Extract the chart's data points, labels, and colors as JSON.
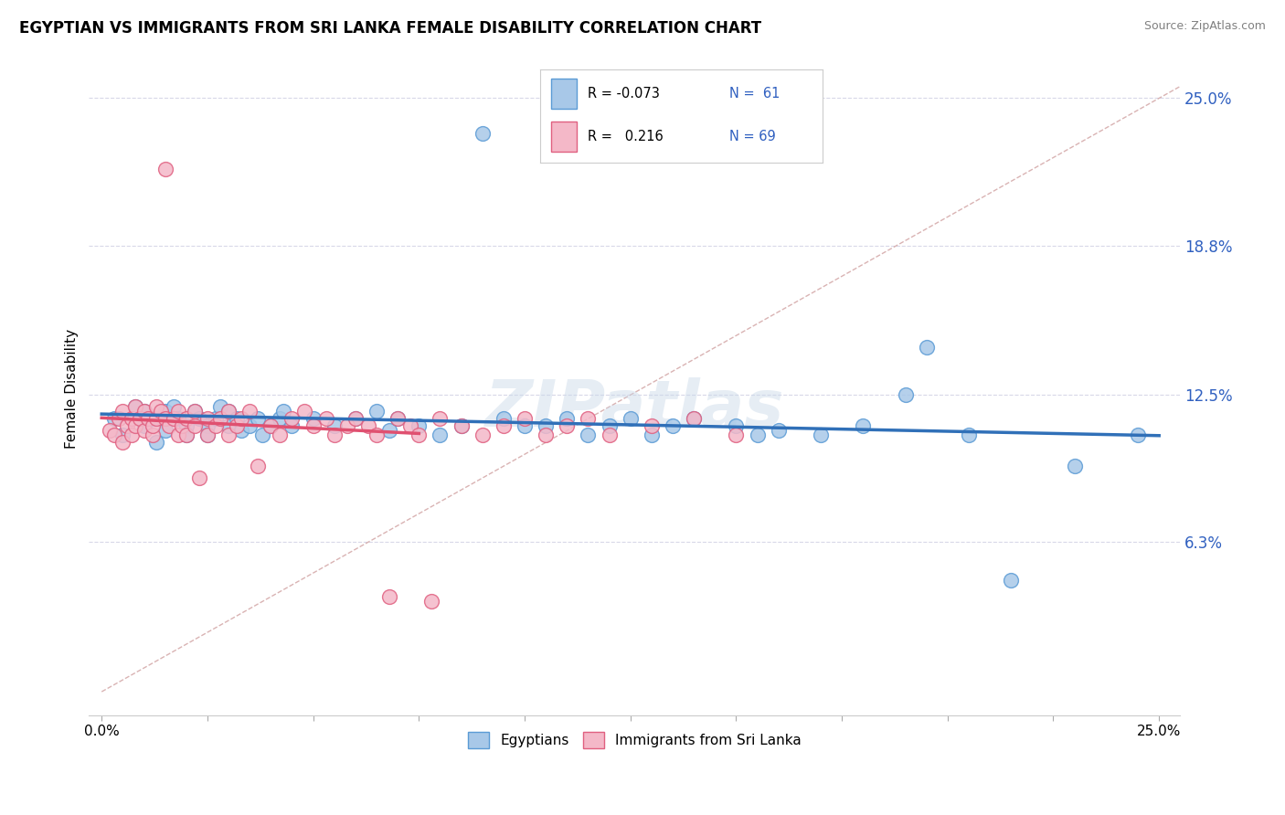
{
  "title": "EGYPTIAN VS IMMIGRANTS FROM SRI LANKA FEMALE DISABILITY CORRELATION CHART",
  "source": "Source: ZipAtlas.com",
  "ylabel": "Female Disability",
  "xlim": [
    -0.003,
    0.255
  ],
  "ylim": [
    -0.01,
    0.265
  ],
  "yticks": [
    0.063,
    0.125,
    0.188,
    0.25
  ],
  "ytick_labels": [
    "6.3%",
    "12.5%",
    "18.8%",
    "25.0%"
  ],
  "blue_color": "#a8c8e8",
  "pink_color": "#f4b8c8",
  "blue_edge": "#5b9bd5",
  "pink_edge": "#e06080",
  "trend_blue": "#3070b8",
  "trend_pink": "#e05070",
  "diag_color": "#d0a0a0",
  "title_fontsize": 12,
  "axis_label_fontsize": 11,
  "tick_fontsize": 11,
  "legend_text_color": "#3060c0",
  "ytick_color": "#3060c0",
  "background_color": "#ffffff",
  "grid_color": "#d8d8e8",
  "watermark": "ZIPatlas",
  "blue_label": "Egyptians",
  "pink_label": "Immigrants from Sri Lanka"
}
